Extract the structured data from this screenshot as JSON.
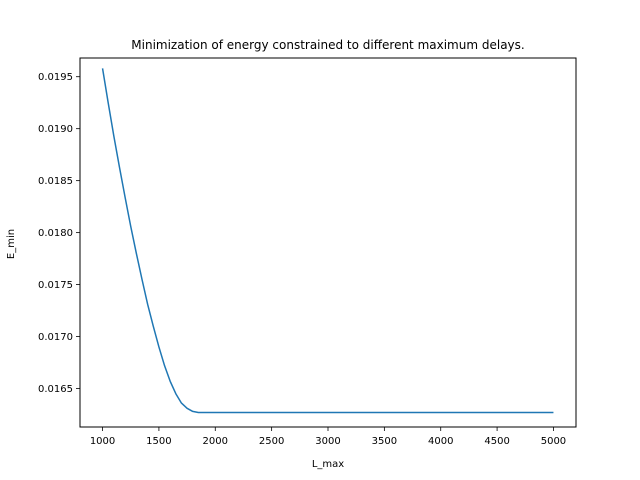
{
  "chart_data": {
    "type": "line",
    "title": "Minimization of energy constrained to different maximum delays.",
    "xlabel": "L_max",
    "ylabel": "E_min",
    "xlim": [
      800,
      5200
    ],
    "ylim": [
      0.01613,
      0.01968
    ],
    "xticks": [
      1000,
      1500,
      2000,
      2500,
      3000,
      3500,
      4000,
      4500,
      5000
    ],
    "xtick_labels": [
      "1000",
      "1500",
      "2000",
      "2500",
      "3000",
      "3500",
      "4000",
      "4500",
      "5000"
    ],
    "yticks": [
      0.0165,
      0.017,
      0.0175,
      0.018,
      0.0185,
      0.019,
      0.0195
    ],
    "ytick_labels": [
      "0.0165",
      "0.0170",
      "0.0175",
      "0.0180",
      "0.0185",
      "0.0190",
      "0.0195"
    ],
    "grid": false,
    "series": [
      {
        "name": "E_min",
        "color": "#1f77b4",
        "x": [
          1000,
          1050,
          1100,
          1150,
          1200,
          1250,
          1300,
          1350,
          1400,
          1450,
          1500,
          1550,
          1600,
          1650,
          1700,
          1750,
          1800,
          1850,
          2000,
          2500,
          3000,
          3500,
          4000,
          4500,
          5000
        ],
        "y": [
          0.01958,
          0.01925,
          0.01893,
          0.01863,
          0.01834,
          0.01806,
          0.0178,
          0.01755,
          0.01731,
          0.0171,
          0.0169,
          0.01672,
          0.01657,
          0.01645,
          0.01636,
          0.01631,
          0.01628,
          0.01627,
          0.01627,
          0.01627,
          0.01627,
          0.01627,
          0.01627,
          0.01627,
          0.01627
        ]
      }
    ]
  }
}
